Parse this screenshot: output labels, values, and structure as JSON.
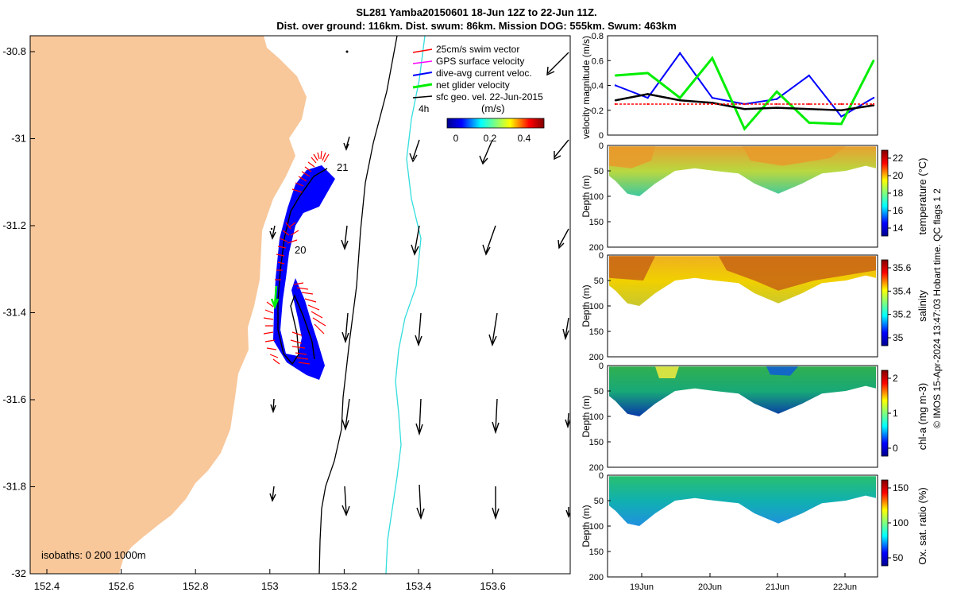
{
  "title": {
    "line1": "SL281 Yamba20150601 18-Jun 12Z to 22-Jun 11Z.",
    "line2": "Dist. over ground: 116km. Dist. swum: 86km. Mission DOG: 555km. Swum: 463km"
  },
  "colors": {
    "land": "#f8c79a",
    "track": "#0000ff",
    "swim_vectors": "#ff0000",
    "gps_velocity": "#ff00ff",
    "net_glider": "#00ee00",
    "geo_velocity": "#000000",
    "isobath_200": "#000000",
    "isobath_1000": "#33dddd"
  },
  "map": {
    "x_ticks": [
      "152.4",
      "152.6",
      "152.8",
      "153",
      "153.2",
      "153.4",
      "153.6"
    ],
    "y_ticks": [
      "-30.8",
      "-31",
      "-31.2",
      "-31.4",
      "-31.6",
      "-31.8",
      "-32"
    ],
    "legend": [
      "25cm/s swim vector",
      "GPS surface velocity",
      "dive-avg current veloc.",
      "net glider velocity",
      "sfc geo. vel. 22-Jun-2015"
    ],
    "time_scale": "4h",
    "colorbar_label": "(m/s)",
    "colorbar_ticks": [
      "0",
      "0.2",
      "0.4"
    ],
    "day_labels": [
      "21",
      "20"
    ],
    "isobaths": "isobaths: 0   200  1000m"
  },
  "velocity_panel": {
    "ylabel": "velocity magnitude (m/s)",
    "y_ticks": [
      "0",
      "0.2",
      "0.4",
      "0.6",
      "0.8"
    ]
  },
  "sections": [
    {
      "ylabel": "Depth (m)",
      "cbar_label": "temperature (°C)",
      "cbar_ticks": [
        "22",
        "20",
        "18",
        "16",
        "14"
      ]
    },
    {
      "ylabel": "Depth (m)",
      "cbar_label": "salinity",
      "cbar_ticks": [
        "35.6",
        "35.4",
        "35.2",
        "35"
      ]
    },
    {
      "ylabel": "Depth (m)",
      "cbar_label": "chl-a (mg m-3)",
      "cbar_ticks": [
        "2",
        "1",
        "0"
      ]
    },
    {
      "ylabel": "Depth (m)",
      "cbar_label": "Ox. sat. ratio (%)",
      "cbar_ticks": [
        "150",
        "100",
        "50"
      ]
    }
  ],
  "depth_ticks": [
    "0",
    "50",
    "100",
    "150",
    "200"
  ],
  "time_ticks": [
    "19Jun",
    "20Jun",
    "21Jun",
    "22Jun"
  ],
  "credit": "© IMOS 15-Apr-2024 13:47:03 Hobart time. QC flags 1  2",
  "chart_data": {
    "type": "line",
    "title": "",
    "xlabel": "",
    "ylabel": "velocity magnitude (m/s)",
    "ylim": [
      0,
      0.8
    ],
    "x": [
      "18-Jun 12Z",
      "19-Jun 00Z",
      "19-Jun 12Z",
      "20-Jun 00Z",
      "20-Jun 12Z",
      "21-Jun 00Z",
      "21-Jun 12Z",
      "22-Jun 00Z",
      "22-Jun 11Z"
    ],
    "series": [
      {
        "name": "dive-avg current veloc.",
        "values": [
          0.4,
          0.3,
          0.66,
          0.3,
          0.25,
          0.29,
          0.48,
          0.15,
          0.3
        ]
      },
      {
        "name": "net glider velocity",
        "values": [
          0.48,
          0.5,
          0.3,
          0.62,
          0.05,
          0.35,
          0.1,
          0.09,
          0.6
        ]
      },
      {
        "name": "sfc geo. vel. 22-Jun-2015",
        "values": [
          0.28,
          0.33,
          0.28,
          0.26,
          0.21,
          0.22,
          0.21,
          0.2,
          0.24
        ]
      },
      {
        "name": "25cm/s swim vector",
        "values": [
          0.25,
          0.25,
          0.25,
          0.25,
          0.25,
          0.25,
          0.25,
          0.25,
          0.25
        ]
      }
    ]
  }
}
